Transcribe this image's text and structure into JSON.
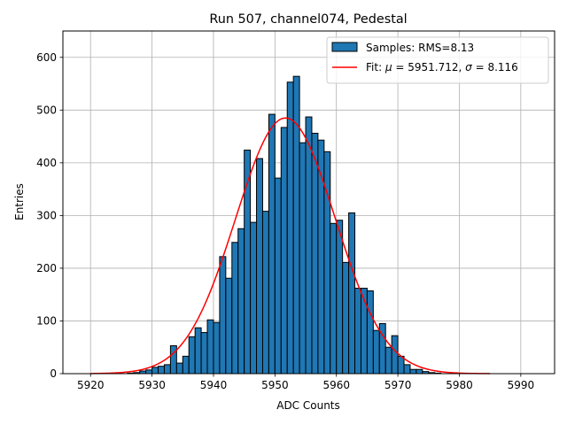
{
  "chart_data": {
    "type": "bar",
    "title": "Run 507, channel074, Pedestal",
    "xlabel": "ADC Counts",
    "ylabel": "Entries",
    "xlim": [
      5915.5,
      5995.5
    ],
    "ylim": [
      0,
      650
    ],
    "xticks": [
      5920,
      5930,
      5940,
      5950,
      5960,
      5970,
      5980,
      5990
    ],
    "yticks": [
      0,
      100,
      200,
      300,
      400,
      500,
      600
    ],
    "grid": true,
    "legend_position": "top-right",
    "histogram": {
      "name": "Samples: RMS=8.13",
      "color": "#1f77b4",
      "edgecolor": "#000000",
      "bin_start": 5920,
      "bin_width": 1,
      "values": [
        0,
        0,
        0,
        0,
        0,
        0,
        1,
        2,
        5,
        7,
        12,
        14,
        17,
        53,
        20,
        33,
        70,
        87,
        78,
        102,
        97,
        222,
        181,
        249,
        275,
        424,
        287,
        408,
        308,
        492,
        371,
        467,
        553,
        564,
        438,
        487,
        456,
        443,
        421,
        285,
        291,
        211,
        305,
        162,
        162,
        157,
        82,
        95,
        50,
        72,
        33,
        17,
        8,
        8,
        4,
        2,
        1,
        0,
        0,
        0,
        0,
        0,
        0,
        0,
        0,
        0,
        0,
        0,
        0,
        0,
        0,
        0,
        0
      ]
    },
    "fit": {
      "name": "Fit: $\\mu$ = 5951.712, $\\sigma$ = 8.116",
      "label_prefix": "Fit: ",
      "mu_symbol": "μ",
      "mu_text": " = 5951.712, ",
      "sigma_symbol": "σ",
      "sigma_text": " = 8.116",
      "mu": 5951.712,
      "sigma": 8.116,
      "amplitude": 485,
      "x_range": [
        5920,
        5985
      ],
      "color": "#ff0000"
    }
  }
}
